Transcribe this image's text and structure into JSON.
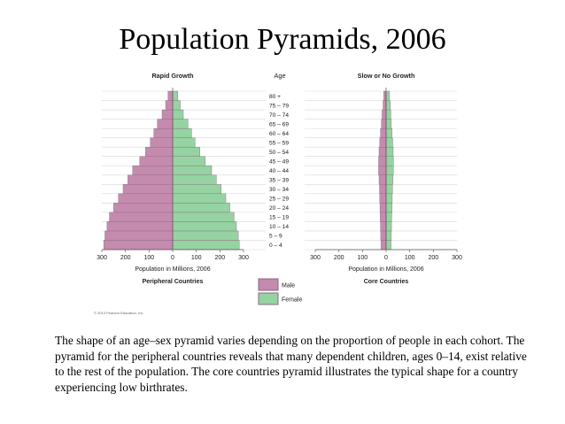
{
  "slide": {
    "title": "Population Pyramids, 2006",
    "caption": "The shape of an age–sex pyramid varies depending on the proportion of people in each cohort. The pyramid for the peripheral countries reveals that many dependent children, ages 0–14, exist relative to the rest of the population. The core countries pyramid illustrates the typical shape for a country experiencing low birthrates."
  },
  "colors": {
    "male": "#c48bae",
    "female": "#95d3a2",
    "bar_border": "#8a6a7e",
    "grid": "#d8d8d8",
    "axis": "#555555",
    "text": "#222222"
  },
  "figure": {
    "age_label": "Age",
    "legend": {
      "male": "Male",
      "female": "Female"
    },
    "copyright": "© 2013 Pearson Education, Inc."
  },
  "chart_data": [
    {
      "type": "bar",
      "orientation": "horizontal-pyramid",
      "title": "Rapid Growth",
      "xlabel": "Population in Millions, 2006",
      "subtitle": "Peripheral Countries",
      "xlim": [
        -300,
        300
      ],
      "xticks": [
        "300",
        "200",
        "100",
        "0",
        "100",
        "200",
        "300"
      ],
      "categories": [
        "0 – 4",
        "5 – 9",
        "10 – 14",
        "15 – 19",
        "20 – 24",
        "25 – 29",
        "30 – 34",
        "35 – 39",
        "40 – 44",
        "45 – 49",
        "50 – 54",
        "55 – 59",
        "60 – 64",
        "65 – 69",
        "70 – 74",
        "75 – 79",
        "80 +"
      ],
      "series": [
        {
          "name": "Male",
          "values": [
            292,
            287,
            278,
            268,
            250,
            230,
            210,
            190,
            170,
            140,
            115,
            95,
            80,
            65,
            45,
            30,
            20
          ]
        },
        {
          "name": "Female",
          "values": [
            282,
            278,
            270,
            260,
            242,
            225,
            205,
            185,
            165,
            138,
            115,
            95,
            80,
            65,
            45,
            32,
            22
          ]
        }
      ]
    },
    {
      "type": "bar",
      "orientation": "horizontal-pyramid",
      "title": "Slow or No Growth",
      "xlabel": "Population in Millions, 2006",
      "subtitle": "Core Countries",
      "xlim": [
        -300,
        300
      ],
      "xticks": [
        "300",
        "200",
        "100",
        "0",
        "100",
        "200",
        "300"
      ],
      "categories": [
        "0 – 4",
        "5 – 9",
        "10 – 14",
        "15 – 19",
        "20 – 24",
        "25 – 29",
        "30 – 34",
        "35 – 39",
        "40 – 44",
        "45 – 49",
        "50 – 54",
        "55 – 59",
        "60 – 64",
        "65 – 69",
        "70 – 74",
        "75 – 79",
        "80 +"
      ],
      "series": [
        {
          "name": "Male",
          "values": [
            22,
            23,
            24,
            25,
            26,
            27,
            28,
            30,
            32,
            32,
            30,
            27,
            24,
            20,
            17,
            13,
            10
          ]
        },
        {
          "name": "Female",
          "values": [
            21,
            22,
            23,
            24,
            25,
            26,
            27,
            29,
            31,
            31,
            30,
            28,
            25,
            22,
            20,
            18,
            14
          ]
        }
      ]
    }
  ]
}
